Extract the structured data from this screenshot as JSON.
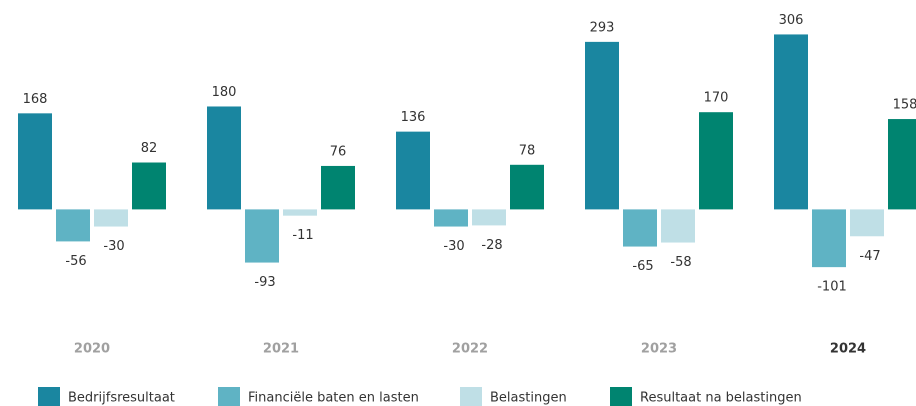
{
  "chart_data": {
    "type": "bar",
    "categories": [
      "2020",
      "2021",
      "2022",
      "2023",
      "2024"
    ],
    "highlight": "2024",
    "series": [
      {
        "name": "Bedrijfsresultaat",
        "color": "#1a86a0",
        "values": [
          168,
          180,
          136,
          293,
          306
        ]
      },
      {
        "name": "Financiële baten en lasten",
        "color": "#5fb3c4",
        "values": [
          -56,
          -93,
          -30,
          -65,
          -101
        ]
      },
      {
        "name": "Belastingen",
        "color": "#bfdfe6",
        "values": [
          -30,
          -11,
          -28,
          -58,
          -47
        ]
      },
      {
        "name": "Resultaat na belastingen",
        "color": "#008470",
        "values": [
          82,
          76,
          78,
          170,
          158
        ]
      }
    ],
    "ylim": [
      -120,
      340
    ],
    "legend": "bottom"
  }
}
